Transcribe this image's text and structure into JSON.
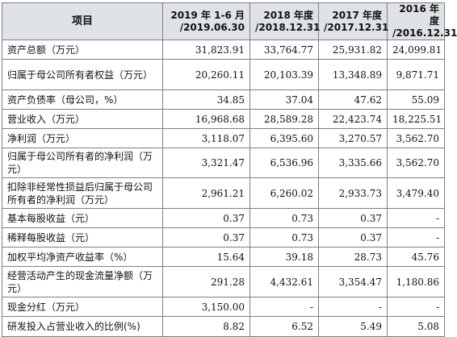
{
  "table": {
    "header": [
      "项目",
      "2019 年 1-6 月\n/2019.06.30",
      "2018 年度\n/2018.12.31",
      "2017 年度\n/2017.12.31",
      "2016 年度\n/2016.12.31"
    ],
    "rows": [
      {
        "label": "资产总额（万元）",
        "values": [
          "31,823.91",
          "33,764.77",
          "25,931.82",
          "24,099.81"
        ]
      },
      {
        "label": "归属于母公司所有者权益（万元）",
        "values": [
          "20,260.11",
          "20,103.39",
          "13,348.89",
          "9,871.71"
        ]
      },
      {
        "label": "资产负债率（母公司，%）",
        "values": [
          "34.85",
          "37.04",
          "47.62",
          "55.09"
        ]
      },
      {
        "label": "营业收入（万元）",
        "values": [
          "16,968.68",
          "28,589.28",
          "22,423.74",
          "18,225.51"
        ]
      },
      {
        "label": "净利润（万元）",
        "values": [
          "3,118.07",
          "6,395.60",
          "3,270.57",
          "3,562.70"
        ]
      },
      {
        "label": "归属于母公司所有者的净利润（万元）",
        "values": [
          "3,321.47",
          "6,536.96",
          "3,335.66",
          "3,562.70"
        ]
      },
      {
        "label": "扣除非经常性损益后归属于母公司所有者的净利润（万元）",
        "values": [
          "2,961.21",
          "6,260.02",
          "2,933.73",
          "3,479.40"
        ]
      },
      {
        "label": "基本每股收益（元）",
        "values": [
          "0.37",
          "0.73",
          "0.37",
          "-"
        ]
      },
      {
        "label": "稀释每股收益（元）",
        "values": [
          "0.37",
          "0.73",
          "0.37",
          "-"
        ]
      },
      {
        "label": "加权平均净资产收益率（%）",
        "values": [
          "15.64",
          "39.18",
          "28.73",
          "45.76"
        ]
      },
      {
        "label": "经营活动产生的现金流量净额（万元）",
        "values": [
          "291.28",
          "4,432.61",
          "3,354.47",
          "1,180.86"
        ]
      },
      {
        "label": "现金分红（万元）",
        "values": [
          "3,150.00",
          "-",
          "-",
          "-"
        ]
      },
      {
        "label": "研发投入占营业收入的比例(%)",
        "values": [
          "8.82",
          "6.52",
          "5.49",
          "5.08"
        ]
      }
    ]
  }
}
